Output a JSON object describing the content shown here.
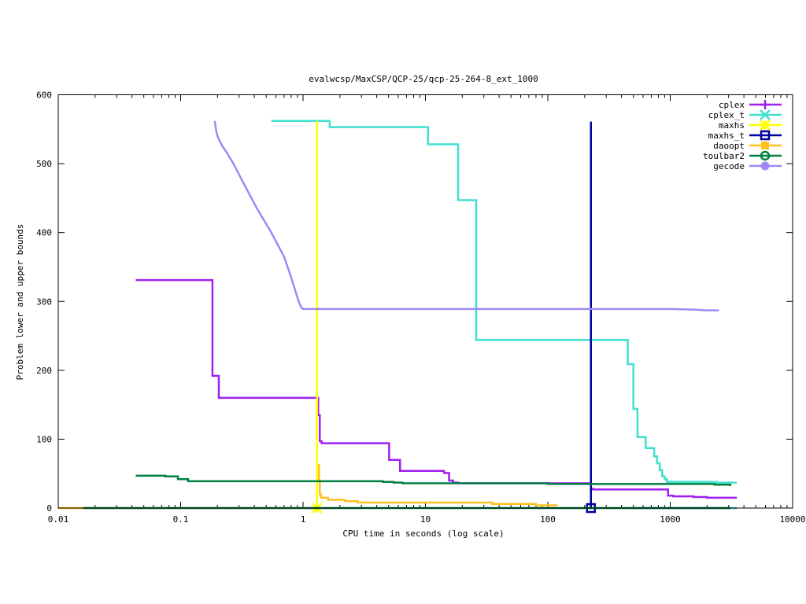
{
  "chart_data": {
    "type": "line",
    "title": "evalwcsp/MaxCSP/QCP-25/qcp-25-264-8_ext_1000",
    "xlabel": "CPU time in seconds (log scale)",
    "ylabel": "Problem lower and upper bounds",
    "x_scale": "log",
    "xlim": [
      0.01,
      10000
    ],
    "ylim": [
      0,
      600
    ],
    "x_ticks": [
      {
        "value": 0.01,
        "label": "0.01"
      },
      {
        "value": 0.1,
        "label": "0.1"
      },
      {
        "value": 1,
        "label": "1"
      },
      {
        "value": 10,
        "label": "10"
      },
      {
        "value": 100,
        "label": "100"
      },
      {
        "value": 1000,
        "label": "1000"
      },
      {
        "value": 10000,
        "label": "10000"
      }
    ],
    "y_ticks": [
      {
        "value": 0,
        "label": "0"
      },
      {
        "value": 100,
        "label": "100"
      },
      {
        "value": 200,
        "label": "200"
      },
      {
        "value": 300,
        "label": "300"
      },
      {
        "value": 400,
        "label": "400"
      },
      {
        "value": 500,
        "label": "500"
      },
      {
        "value": 600,
        "label": "600"
      }
    ],
    "grid": false,
    "legend_position": "top-right",
    "series": [
      {
        "name": "cplex",
        "color": "#a020f0",
        "marker": "plus",
        "step": true,
        "points": [
          [
            0.043,
            331
          ],
          [
            0.182,
            331
          ],
          [
            0.182,
            192
          ],
          [
            0.205,
            192
          ],
          [
            0.205,
            160
          ],
          [
            1.33,
            160
          ],
          [
            1.33,
            135
          ],
          [
            1.37,
            135
          ],
          [
            1.37,
            97
          ],
          [
            1.42,
            97
          ],
          [
            1.42,
            94
          ],
          [
            5.05,
            94
          ],
          [
            5.05,
            70
          ],
          [
            6.2,
            70
          ],
          [
            6.2,
            54
          ],
          [
            14.2,
            54
          ],
          [
            14.2,
            51
          ],
          [
            15.6,
            51
          ],
          [
            15.6,
            40
          ],
          [
            16.8,
            40
          ],
          [
            16.8,
            37
          ],
          [
            18.5,
            37
          ],
          [
            18.5,
            36
          ],
          [
            220,
            36
          ]
        ],
        "points_lower": [
          [
            220,
            28
          ],
          [
            235,
            28
          ],
          [
            235,
            27
          ],
          [
            960,
            27
          ],
          [
            960,
            18
          ],
          [
            1060,
            18
          ],
          [
            1060,
            17
          ],
          [
            1550,
            17
          ],
          [
            1550,
            16
          ],
          [
            2000,
            16
          ],
          [
            2000,
            15
          ],
          [
            3500,
            15
          ]
        ],
        "marker_points": []
      },
      {
        "name": "cplex_t",
        "color": "#40e0d0",
        "marker": "x",
        "step": true,
        "points": [
          [
            0.55,
            562
          ],
          [
            1.65,
            562
          ],
          [
            1.65,
            553
          ],
          [
            10.5,
            553
          ],
          [
            10.5,
            528
          ],
          [
            18.5,
            528
          ],
          [
            18.5,
            447
          ],
          [
            26,
            447
          ],
          [
            26,
            244
          ],
          [
            450,
            244
          ],
          [
            450,
            209
          ],
          [
            500,
            209
          ],
          [
            500,
            144
          ],
          [
            540,
            144
          ],
          [
            540,
            103
          ],
          [
            630,
            103
          ],
          [
            630,
            87
          ],
          [
            740,
            87
          ],
          [
            740,
            75
          ],
          [
            780,
            75
          ],
          [
            780,
            65
          ],
          [
            820,
            65
          ],
          [
            820,
            55
          ],
          [
            860,
            55
          ],
          [
            860,
            46
          ],
          [
            900,
            46
          ],
          [
            900,
            42
          ],
          [
            940,
            42
          ],
          [
            940,
            38
          ],
          [
            2400,
            38
          ],
          [
            2400,
            37
          ],
          [
            3500,
            37
          ]
        ],
        "points_lower": [
          [
            470,
            0
          ],
          [
            3500,
            0
          ]
        ],
        "marker_points": []
      },
      {
        "name": "maxhs",
        "color": "#ffff00",
        "marker": "star",
        "step": false,
        "points": [
          [
            1.3,
            562
          ],
          [
            1.3,
            0
          ]
        ],
        "marker_points": [
          [
            1.3,
            0
          ]
        ]
      },
      {
        "name": "maxhs_t",
        "color": "#0000a0",
        "marker": "square",
        "step": false,
        "points": [
          [
            225,
            561
          ],
          [
            225,
            0
          ]
        ],
        "marker_points": [
          [
            225,
            0
          ]
        ]
      },
      {
        "name": "daoopt",
        "color": "#ffc020",
        "marker": "filled-square",
        "step": true,
        "points": [
          [
            1.35,
            64
          ],
          [
            1.35,
            40
          ],
          [
            1.37,
            40
          ],
          [
            1.37,
            20
          ],
          [
            1.4,
            20
          ],
          [
            1.4,
            15
          ],
          [
            1.6,
            15
          ],
          [
            1.6,
            12
          ],
          [
            2.2,
            12
          ],
          [
            2.2,
            10
          ],
          [
            2.8,
            10
          ],
          [
            2.8,
            8
          ],
          [
            35,
            8
          ],
          [
            35,
            6
          ],
          [
            80,
            6
          ],
          [
            80,
            4
          ],
          [
            120,
            4
          ]
        ],
        "points_lower": [
          [
            0.01,
            0
          ],
          [
            1.35,
            0
          ]
        ],
        "marker_points": []
      },
      {
        "name": "toulbar2",
        "color": "#008040",
        "marker": "circle",
        "step": true,
        "points": [
          [
            0.043,
            47
          ],
          [
            0.075,
            47
          ],
          [
            0.075,
            46
          ],
          [
            0.095,
            46
          ],
          [
            0.095,
            42
          ],
          [
            0.115,
            42
          ],
          [
            0.115,
            39
          ],
          [
            4.5,
            39
          ],
          [
            4.5,
            38
          ],
          [
            5.5,
            38
          ],
          [
            5.5,
            37
          ],
          [
            6.5,
            37
          ],
          [
            6.5,
            36
          ],
          [
            100,
            36
          ],
          [
            100,
            35
          ],
          [
            2300,
            35
          ],
          [
            2300,
            34
          ],
          [
            3100,
            34
          ],
          [
            3100,
            32
          ]
        ],
        "points_lower": [
          [
            0.016,
            0
          ],
          [
            3100,
            0
          ]
        ],
        "marker_points": []
      },
      {
        "name": "gecode",
        "color": "#9f88f5",
        "marker": "filled-circle",
        "step": false,
        "points": [
          [
            0.19,
            562
          ],
          [
            0.195,
            548
          ],
          [
            0.2,
            540
          ],
          [
            0.21,
            532
          ],
          [
            0.22,
            525
          ],
          [
            0.24,
            515
          ],
          [
            0.27,
            500
          ],
          [
            0.33,
            470
          ],
          [
            0.42,
            435
          ],
          [
            0.55,
            400
          ],
          [
            0.7,
            365
          ],
          [
            0.8,
            335
          ],
          [
            0.92,
            300
          ],
          [
            0.97,
            291
          ],
          [
            1.0,
            289
          ],
          [
            1000,
            289
          ],
          [
            1600,
            288
          ],
          [
            2000,
            287
          ],
          [
            2500,
            287
          ]
        ],
        "marker_points": []
      }
    ]
  }
}
